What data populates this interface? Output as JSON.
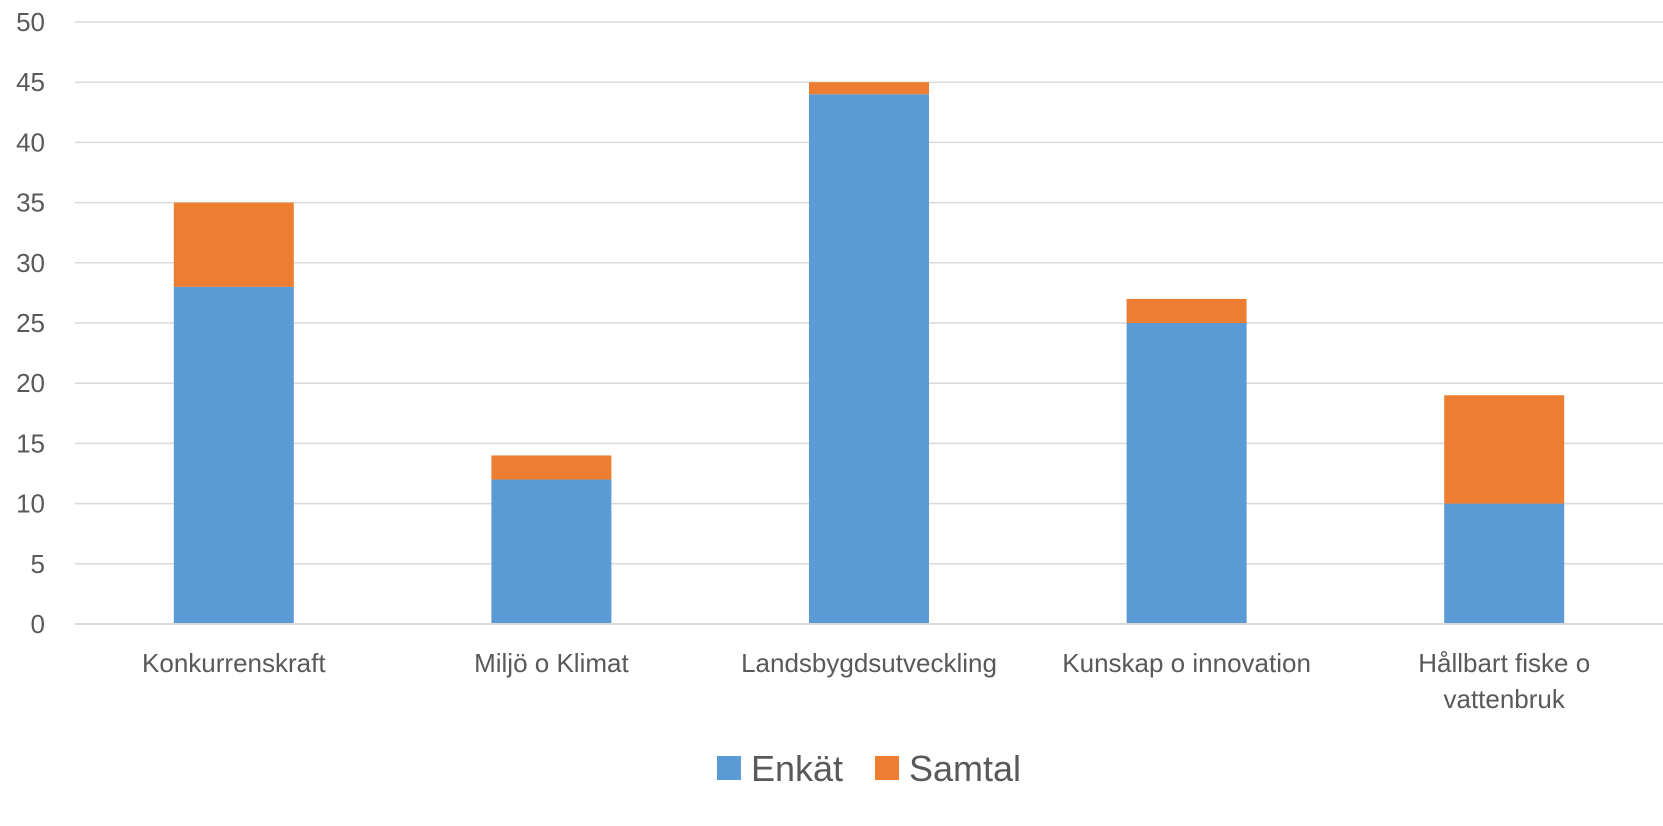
{
  "chart_data": {
    "type": "bar",
    "stacked": true,
    "categories": [
      [
        "Konkurrenskraft"
      ],
      [
        "Miljö o Klimat"
      ],
      [
        "Landsbygdsutveckling"
      ],
      [
        "Kunskap o innovation"
      ],
      [
        "Hållbart fiske o",
        "vattenbruk"
      ]
    ],
    "series": [
      {
        "name": "Enkät",
        "values": [
          28,
          12,
          44,
          25,
          10
        ],
        "color": "#5b9bd5"
      },
      {
        "name": "Samtal",
        "values": [
          7,
          2,
          1,
          2,
          9
        ],
        "color": "#ed7d31"
      }
    ],
    "ylim": [
      0,
      50
    ],
    "yticks": [
      "0",
      "5",
      "10",
      "15",
      "20",
      "25",
      "30",
      "35",
      "40",
      "45",
      "50"
    ],
    "title": "",
    "xlabel": "",
    "ylabel": "",
    "grid": true,
    "legend_position": "bottom"
  }
}
